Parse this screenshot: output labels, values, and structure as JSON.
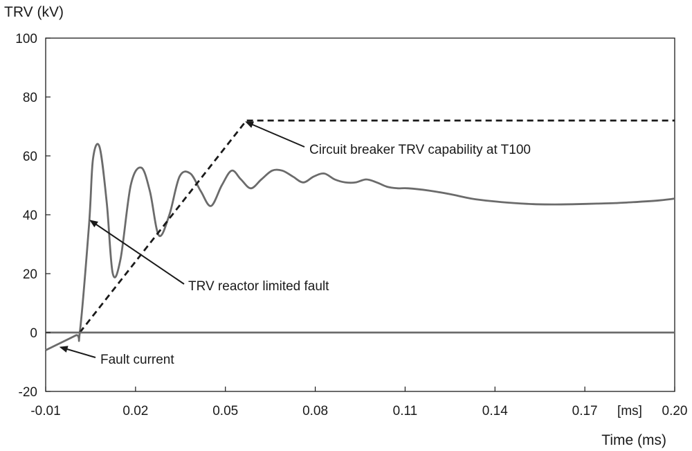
{
  "chart_data": {
    "type": "line",
    "ylabel": "TRV (kV)",
    "xlabel": "Time (ms)",
    "x_unit_label": "[ms]",
    "ylim": [
      -20,
      100
    ],
    "yticks": [
      100,
      80,
      60,
      40,
      20,
      0,
      -20
    ],
    "xticks": [
      {
        "value": -0.01,
        "label": "-0.01"
      },
      {
        "value": 0.02,
        "label": "0.02"
      },
      {
        "value": 0.05,
        "label": "0.05"
      },
      {
        "value": 0.08,
        "label": "0.08"
      },
      {
        "value": 0.11,
        "label": "0.11"
      },
      {
        "value": 0.14,
        "label": "0.14"
      },
      {
        "value": 0.17,
        "label": "0.17"
      },
      {
        "value": 0.2,
        "label": "0.20"
      }
    ],
    "xlim": [
      -0.01,
      0.2
    ],
    "grid": false,
    "series": [
      {
        "style": "solid",
        "color": "#6b6b6b",
        "x": [
          -0.01,
          0.0,
          0.0014,
          0.0045,
          0.0058,
          0.008,
          0.0104,
          0.0124,
          0.015,
          0.0184,
          0.0219,
          0.0248,
          0.0278,
          0.0313,
          0.0347,
          0.0383,
          0.0418,
          0.0452,
          0.0488,
          0.0521,
          0.0552,
          0.0585,
          0.062,
          0.0656,
          0.069,
          0.0725,
          0.076,
          0.0795,
          0.083,
          0.0865,
          0.09,
          0.0935,
          0.097,
          0.1005,
          0.104,
          0.1075,
          0.111,
          0.118,
          0.125,
          0.132,
          0.139,
          0.146,
          0.153,
          0.16,
          0.167,
          0.174,
          0.181,
          0.188,
          0.195,
          0.2
        ],
        "y": [
          -6,
          -1,
          0,
          37,
          59,
          63,
          44,
          20,
          25,
          50,
          56,
          48,
          33,
          40,
          53,
          54,
          48,
          43,
          50,
          55,
          52,
          49,
          52,
          55,
          55,
          53,
          51,
          53,
          54,
          52,
          51,
          51,
          52,
          51,
          49.5,
          49,
          49,
          48.2,
          47,
          45.5,
          44.6,
          44,
          43.6,
          43.5,
          43.6,
          43.8,
          44,
          44.4,
          44.9,
          45.5
        ]
      },
      {
        "style": "dashed",
        "color": "#1a1a1a",
        "x": [
          0.0014,
          0.057,
          0.2
        ],
        "y": [
          0,
          72,
          72
        ]
      },
      {
        "style": "solid",
        "color": "#6b6b6b",
        "x": [
          -0.01,
          0.2
        ],
        "y": [
          0,
          0
        ]
      }
    ],
    "annotations": [
      {
        "text": "Circuit breaker TRV capability at T100",
        "arrow_to": {
          "x": 0.057,
          "y": 71.5
        }
      },
      {
        "text": "TRV reactor limited fault",
        "arrow_to": {
          "x": 0.005,
          "y": 38
        }
      },
      {
        "text": "Fault current",
        "arrow_to": {
          "x": -0.005,
          "y": -5
        }
      }
    ]
  }
}
